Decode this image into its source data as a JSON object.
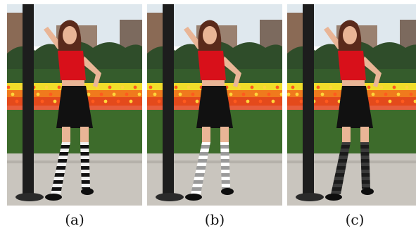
{
  "panels": [
    {
      "caption": "(a)",
      "sock_style": "black-white-stripes",
      "sock_colors": [
        "#111111",
        "#f0f0f0"
      ]
    },
    {
      "caption": "(b)",
      "sock_style": "gray-white-stripes",
      "sock_colors": [
        "#9a9a9a",
        "#ffffff"
      ]
    },
    {
      "caption": "(c)",
      "sock_style": "dark-stripes",
      "sock_colors": [
        "#1b1b1b",
        "#3a3a3a"
      ]
    }
  ],
  "colors": {
    "sky": "#dfe8ee",
    "building": "#8a6a55",
    "trees": "#2f4d2a",
    "tulip_red": "#e2421b",
    "tulip_orange": "#f07a1d",
    "tulip_yellow": "#f1dd2a",
    "grass": "#3d6b2b",
    "sidewalk": "#c9c5be",
    "pole": "#1d1d1d",
    "shirt": "#d8101a",
    "skirt": "#111111",
    "skin": "#e9b596",
    "hair": "#5a2a1b"
  }
}
